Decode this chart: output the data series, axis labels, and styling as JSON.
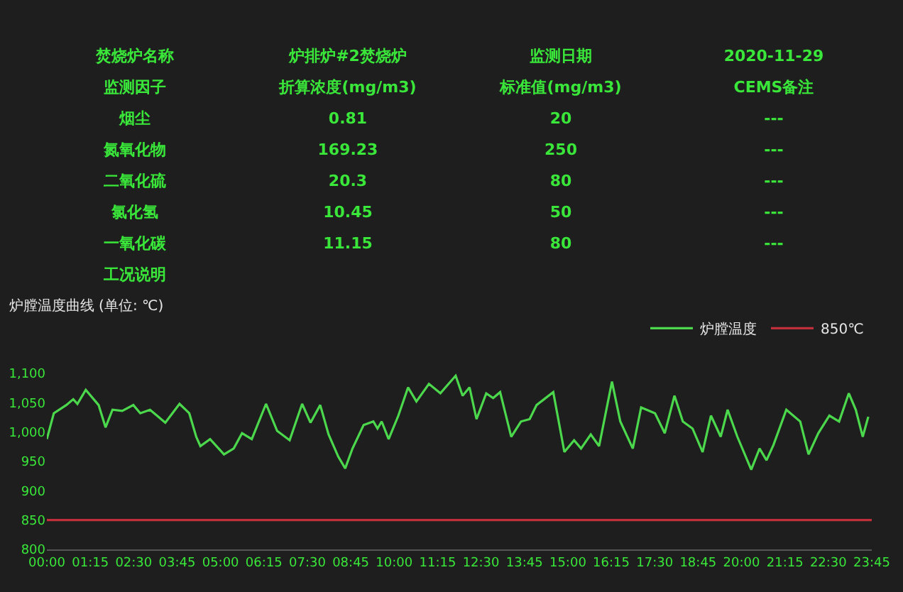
{
  "chart_data": [
    {
      "type": "other",
      "annotations": [
        "焚烧炉名称",
        "炉排炉#2焚烧炉",
        "监测日期",
        "2020-11-29",
        "监测因子",
        "折算浓度(mg/m3)",
        "标准值(mg/m3)",
        "CEMS备注",
        "烟尘",
        "0.81",
        "20",
        "---",
        "氮氧化物",
        "169.23",
        "250",
        "---",
        "二氧化硫",
        "20.3",
        "80",
        "---",
        "氯化氢",
        "10.45",
        "50",
        "---",
        "一氧化碳",
        "11.15",
        "80",
        "---",
        "工况说明"
      ]
    },
    {
      "type": "line",
      "title": "炉膛温度曲线 (单位: ℃)",
      "legend": "top right",
      "grid": false,
      "marker": "none",
      "line_style": "solid",
      "xlim": [
        0,
        23.75
      ],
      "xticks": [
        {
          "value": 0,
          "label": "00:00"
        },
        {
          "value": 1.25,
          "label": "01:15"
        },
        {
          "value": 2.5,
          "label": "02:30"
        },
        {
          "value": 3.75,
          "label": "03:45"
        },
        {
          "value": 5,
          "label": "05:00"
        },
        {
          "value": 6.25,
          "label": "06:15"
        },
        {
          "value": 7.5,
          "label": "07:30"
        },
        {
          "value": 8.75,
          "label": "08:45"
        },
        {
          "value": 10,
          "label": "10:00"
        },
        {
          "value": 11.25,
          "label": "11:15"
        },
        {
          "value": 12.5,
          "label": "12:30"
        },
        {
          "value": 13.75,
          "label": "13:45"
        },
        {
          "value": 15,
          "label": "15:00"
        },
        {
          "value": 16.25,
          "label": "16:15"
        },
        {
          "value": 17.5,
          "label": "17:30"
        },
        {
          "value": 18.75,
          "label": "18:45"
        },
        {
          "value": 20,
          "label": "20:00"
        },
        {
          "value": 21.25,
          "label": "21:15"
        },
        {
          "value": 22.5,
          "label": "22:30"
        },
        {
          "value": 23.75,
          "label": "23:45"
        }
      ],
      "ylim": [
        800,
        1100
      ],
      "yticks": [
        800,
        850,
        900,
        950,
        {
          "value": 1000,
          "label": "1,000"
        },
        {
          "value": 1050,
          "label": "1,050"
        },
        {
          "value": 1100,
          "label": "1,100"
        }
      ],
      "series": [
        {
          "name": "炉膛温度",
          "color": "#4cd84c",
          "x": [
            0,
            0.2,
            0.56,
            0.76,
            0.88,
            1.12,
            1.49,
            1.69,
            1.89,
            2.17,
            2.49,
            2.69,
            2.97,
            3.17,
            3.41,
            3.82,
            4.1,
            4.3,
            4.42,
            4.7,
            5.1,
            5.38,
            5.62,
            5.9,
            6.31,
            6.63,
            6.99,
            7.35,
            7.59,
            7.87,
            8.11,
            8.39,
            8.59,
            8.8,
            9.12,
            9.4,
            9.52,
            9.64,
            9.84,
            10.12,
            10.4,
            10.64,
            11,
            11.33,
            11.77,
            11.97,
            12.17,
            12.37,
            12.65,
            12.85,
            13.05,
            13.37,
            13.65,
            13.9,
            14.1,
            14.58,
            14.9,
            15.18,
            15.38,
            15.66,
            15.9,
            16.27,
            16.51,
            16.87,
            17.11,
            17.51,
            17.79,
            18.07,
            18.31,
            18.59,
            18.88,
            19.12,
            19.4,
            19.6,
            19.88,
            20.28,
            20.52,
            20.72,
            20.92,
            21.29,
            21.69,
            21.93,
            22.21,
            22.53,
            22.81,
            23.09,
            23.29,
            23.49,
            23.65
          ],
          "values": [
            988,
            1032,
            1046,
            1056,
            1048,
            1072,
            1046,
            1008,
            1038,
            1036,
            1046,
            1032,
            1038,
            1028,
            1016,
            1048,
            1032,
            992,
            976,
            988,
            962,
            972,
            998,
            988,
            1048,
            1002,
            986,
            1048,
            1016,
            1046,
            996,
            958,
            938,
            972,
            1012,
            1018,
            1006,
            1018,
            988,
            1028,
            1076,
            1052,
            1082,
            1066,
            1096,
            1062,
            1076,
            1022,
            1066,
            1058,
            1068,
            992,
            1018,
            1022,
            1046,
            1068,
            966,
            986,
            972,
            996,
            976,
            1086,
            1018,
            972,
            1042,
            1032,
            998,
            1062,
            1018,
            1006,
            966,
            1028,
            992,
            1038,
            992,
            936,
            972,
            952,
            978,
            1038,
            1018,
            962,
            998,
            1028,
            1018,
            1066,
            1038,
            992,
            1026
          ]
        },
        {
          "name": "850℃",
          "color": "#c0303a",
          "x": [
            0,
            23.75
          ],
          "values": [
            850,
            850
          ]
        }
      ]
    }
  ]
}
